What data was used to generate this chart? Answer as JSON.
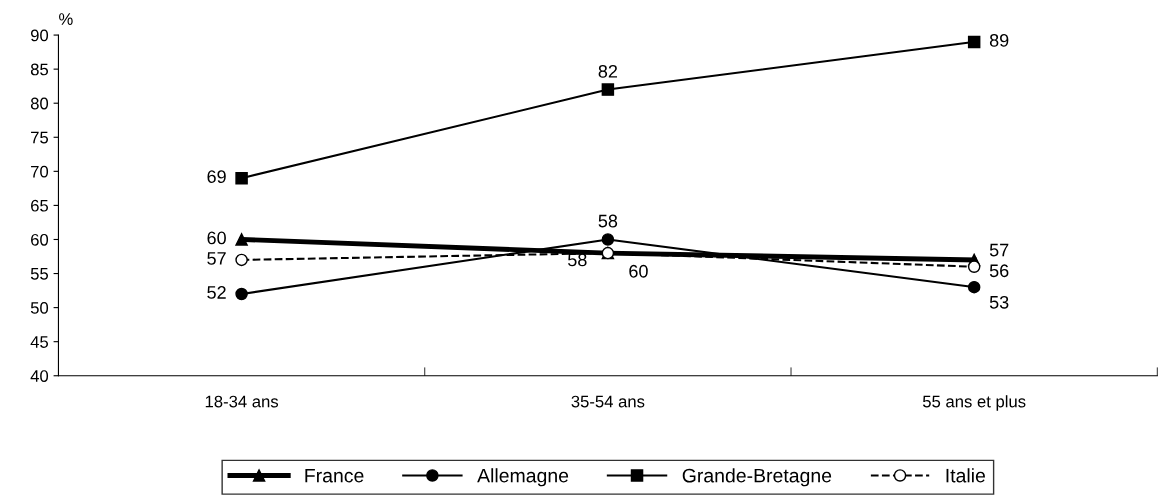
{
  "chart_data": {
    "type": "line",
    "ylabel": "%",
    "categories": [
      "18-34 ans",
      "35-54 ans",
      "55 ans et plus"
    ],
    "series": [
      {
        "name": "France",
        "color": "#000000",
        "values": [
          60,
          58,
          57
        ],
        "marker": "triangle",
        "line_style": "solid"
      },
      {
        "name": "Allemagne",
        "color": "#000000",
        "values": [
          52,
          60,
          53
        ],
        "marker": "circle",
        "line_style": "solid"
      },
      {
        "name": "Grande-Bretagne",
        "color": "#000000",
        "values": [
          69,
          82,
          89
        ],
        "marker": "square",
        "line_style": "solid"
      },
      {
        "name": "Italie",
        "color": "#000000",
        "values": [
          57,
          58,
          56
        ],
        "marker": "circle",
        "line_style": "dashed"
      }
    ],
    "ylim": [
      40,
      90
    ],
    "yticks": [
      40,
      45,
      50,
      55,
      60,
      65,
      70,
      75,
      80,
      85,
      90
    ],
    "grid": false,
    "legend": "bottom",
    "data_labels": true
  }
}
